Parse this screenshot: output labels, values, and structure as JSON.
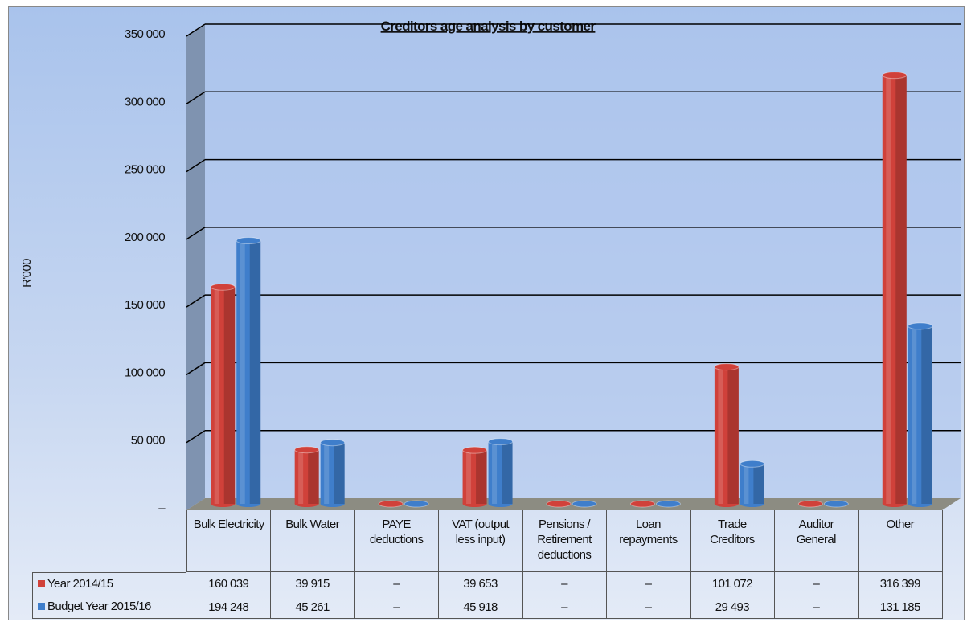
{
  "chart_data": {
    "type": "bar",
    "title": "Creditors age analysis by customer",
    "y_label": "R'000",
    "categories": [
      "Bulk Electricity",
      "Bulk Water",
      "PAYE deductions",
      "VAT (output less input)",
      "Pensions / Retirement deductions",
      "Loan repayments",
      "Trade Creditors",
      "Auditor General",
      "Other"
    ],
    "series": [
      {
        "name": "Year 2014/15",
        "color": "#d0413a",
        "values": [
          160039,
          39915,
          0,
          39653,
          0,
          0,
          101072,
          0,
          316399
        ],
        "value_labels": [
          "160 039",
          "39 915",
          "–",
          "39 653",
          "–",
          "–",
          "101 072",
          "–",
          "316 399"
        ]
      },
      {
        "name": "Budget Year 2015/16",
        "color": "#3f7ecb",
        "values": [
          194248,
          45261,
          0,
          45918,
          0,
          0,
          29493,
          0,
          131185
        ],
        "value_labels": [
          "194 248",
          "45 261",
          "–",
          "45 918",
          "–",
          "–",
          "29 493",
          "–",
          "131 185"
        ]
      }
    ],
    "ylim": [
      0,
      350000
    ],
    "yticks": [
      {
        "value": 0,
        "label": "–"
      },
      {
        "value": 50000,
        "label": "50 000"
      },
      {
        "value": 100000,
        "label": "100 000"
      },
      {
        "value": 150000,
        "label": "150 000"
      },
      {
        "value": 200000,
        "label": "200 000"
      },
      {
        "value": 250000,
        "label": "250 000"
      },
      {
        "value": 300000,
        "label": "300 000"
      },
      {
        "value": 350000,
        "label": "350 000"
      }
    ],
    "grid": true
  }
}
